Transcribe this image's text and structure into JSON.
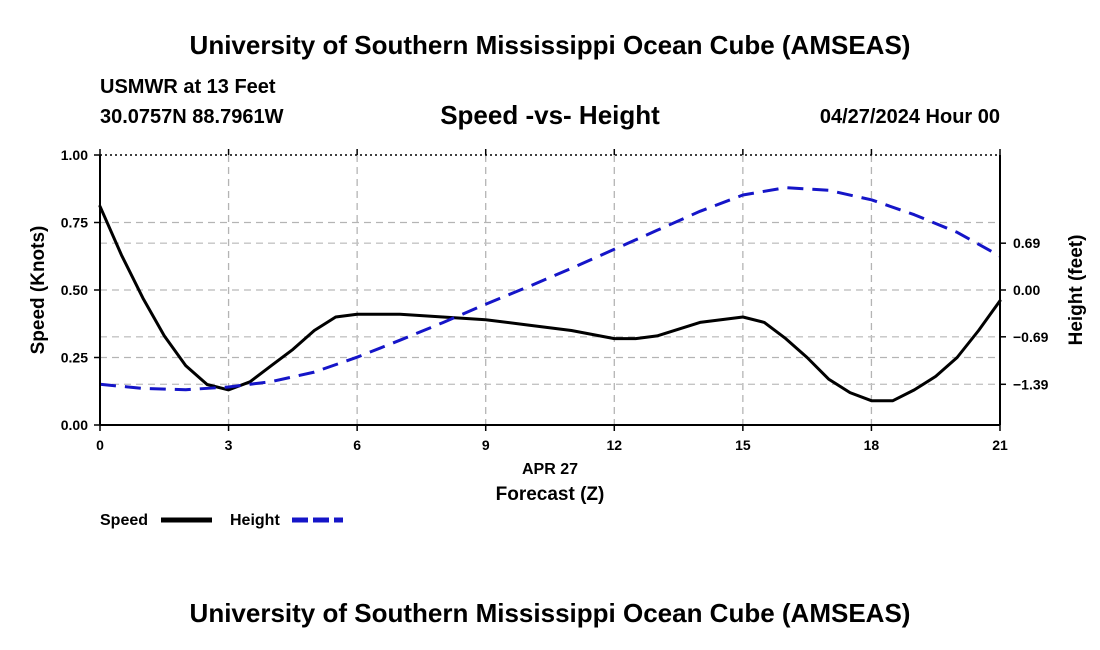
{
  "header": {
    "main_title": "University of Southern Mississippi Ocean Cube (AMSEAS)",
    "station": "USMWR at 13 Feet",
    "coordinates": "30.0757N  88.7961W",
    "subtitle": "Speed -vs- Height",
    "datetime": "04/27/2024 Hour 00"
  },
  "footer": {
    "title": "University of Southern Mississippi Ocean Cube (AMSEAS)"
  },
  "chart_data": {
    "type": "line",
    "title": "Speed -vs- Height",
    "xlabel": "Forecast (Z)",
    "xlabel_date": "APR 27",
    "ylabel_left": "Speed (Knots)",
    "ylabel_right": "Height (feet)",
    "xlim": [
      0,
      21
    ],
    "ylim_left": [
      0,
      1
    ],
    "ylim_right": [
      -1.99,
      1.99
    ],
    "x_ticks": [
      0,
      3,
      6,
      9,
      12,
      15,
      18,
      21
    ],
    "x_tick_labels": [
      "0",
      "3",
      "6",
      "9",
      "12",
      "15",
      "18",
      "21"
    ],
    "y_left_ticks": [
      0,
      0.25,
      0.5,
      0.75,
      1.0
    ],
    "y_left_tick_labels": [
      "0.00",
      "0.25",
      "0.50",
      "0.75",
      "1.00"
    ],
    "y_right_ticks": [
      -1.39,
      -0.69,
      0.0,
      0.69
    ],
    "y_right_tick_labels": [
      "−1.39",
      "−0.69",
      "0.00",
      "0.69"
    ],
    "grid": true,
    "series": [
      {
        "name": "Speed",
        "axis": "left",
        "color": "#000000",
        "style": "solid",
        "x": [
          0,
          0.5,
          1,
          1.5,
          2,
          2.5,
          3,
          3.5,
          4,
          4.5,
          5,
          5.5,
          6,
          7,
          8,
          9,
          10,
          11,
          12,
          12.5,
          13,
          14,
          15,
          15.5,
          16,
          16.5,
          17,
          17.5,
          18,
          18.5,
          19,
          19.5,
          20,
          20.5,
          21
        ],
        "values": [
          0.81,
          0.63,
          0.47,
          0.33,
          0.22,
          0.15,
          0.13,
          0.16,
          0.22,
          0.28,
          0.35,
          0.4,
          0.41,
          0.41,
          0.4,
          0.39,
          0.37,
          0.35,
          0.32,
          0.32,
          0.33,
          0.38,
          0.4,
          0.38,
          0.32,
          0.25,
          0.17,
          0.12,
          0.09,
          0.09,
          0.13,
          0.18,
          0.25,
          0.35,
          0.46
        ]
      },
      {
        "name": "Height",
        "axis": "right",
        "color": "#1515c8",
        "style": "dashed",
        "x": [
          0,
          1,
          2,
          3,
          4,
          5,
          6,
          7,
          8,
          9,
          10,
          11,
          12,
          13,
          14,
          15,
          16,
          17,
          18,
          19,
          20,
          21
        ],
        "values": [
          -1.39,
          -1.45,
          -1.47,
          -1.43,
          -1.35,
          -1.21,
          -0.99,
          -0.74,
          -0.48,
          -0.21,
          0.05,
          0.32,
          0.6,
          0.88,
          1.16,
          1.4,
          1.51,
          1.47,
          1.33,
          1.11,
          0.85,
          0.5
        ]
      }
    ],
    "legend": [
      {
        "label": "Speed",
        "color": "#000000",
        "style": "solid"
      },
      {
        "label": "Height",
        "color": "#1515c8",
        "style": "dashed"
      }
    ]
  }
}
